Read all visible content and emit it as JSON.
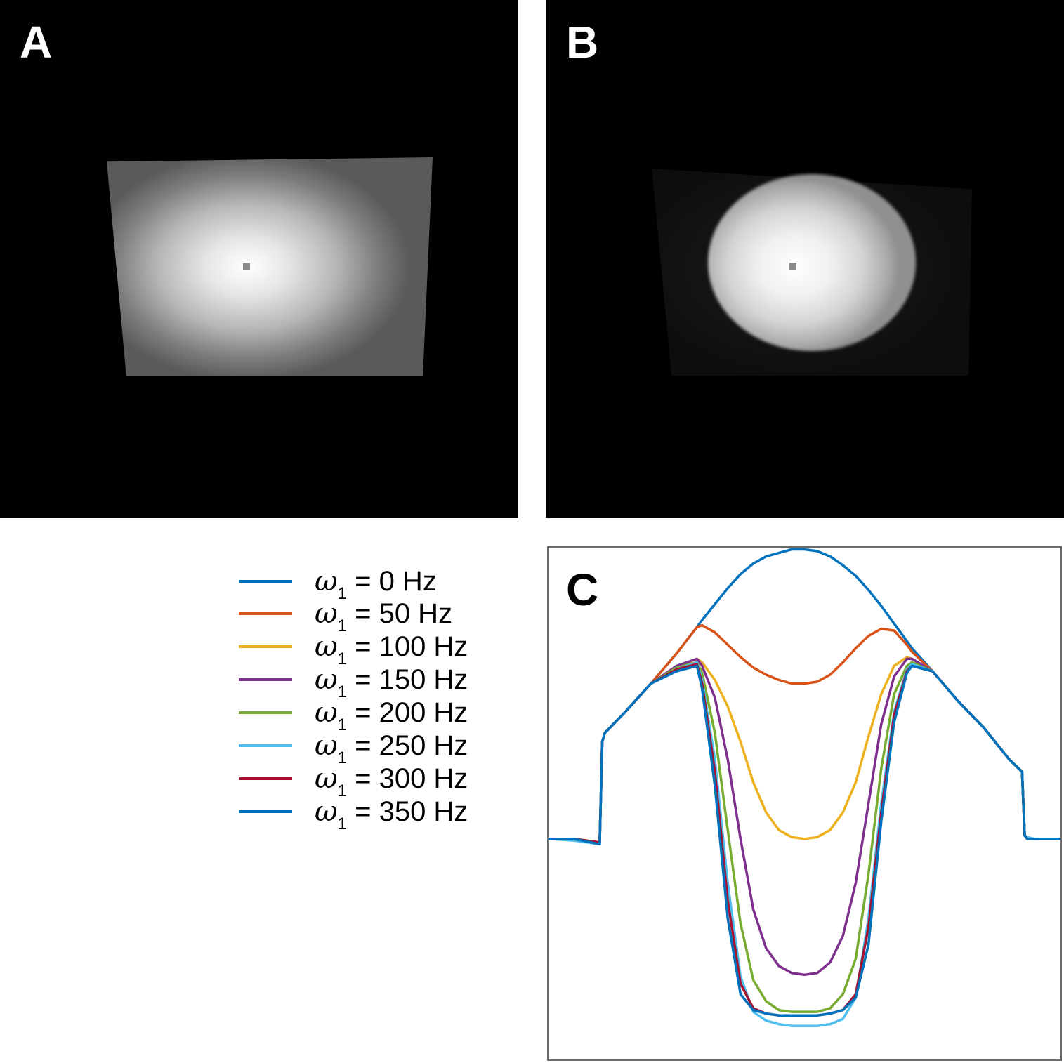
{
  "panels": {
    "a_label": "A",
    "b_label": "B",
    "c_label": "C"
  },
  "colors": {
    "blue": "#0072bd",
    "orange": "#d95319",
    "yellow": "#edb120",
    "purple": "#7e2f8e",
    "green": "#77ac30",
    "light_blue": "#4dbeee",
    "dark_red": "#a2142f"
  },
  "chart_data": {
    "type": "line",
    "title": "",
    "xlabel": "",
    "ylabel": "",
    "grid": false,
    "legend_position": "left of plot",
    "x": [
      0,
      10,
      20,
      21,
      22,
      30,
      40,
      50,
      58,
      60,
      65,
      70,
      75,
      80,
      85,
      90,
      95,
      100,
      105,
      110,
      115,
      120,
      125,
      130,
      135,
      140,
      142,
      150,
      160,
      170,
      180,
      185,
      186,
      187,
      190,
      200
    ],
    "ylim": [
      -1.25,
      1.65
    ],
    "series": [
      {
        "name": "ω1 = 0 Hz",
        "color": "#0072bd",
        "values": [
          0,
          0,
          -0.02,
          0.55,
          0.6,
          0.72,
          0.88,
          1.05,
          1.2,
          1.24,
          1.33,
          1.42,
          1.5,
          1.56,
          1.6,
          1.62,
          1.64,
          1.64,
          1.63,
          1.6,
          1.55,
          1.49,
          1.41,
          1.32,
          1.22,
          1.12,
          1.08,
          0.95,
          0.78,
          0.63,
          0.45,
          0.38,
          0.02,
          0,
          0,
          0
        ]
      },
      {
        "name": "ω1 = 50 Hz",
        "color": "#d95319",
        "values": [
          0,
          0,
          -0.02,
          0.55,
          0.6,
          0.72,
          0.88,
          1.05,
          1.2,
          1.21,
          1.17,
          1.1,
          1.03,
          0.97,
          0.93,
          0.9,
          0.88,
          0.88,
          0.89,
          0.93,
          1.0,
          1.08,
          1.15,
          1.19,
          1.18,
          1.1,
          1.06,
          0.95,
          0.78,
          0.63,
          0.45,
          0.38,
          0.02,
          0,
          0,
          0
        ]
      },
      {
        "name": "ω1 = 100 Hz",
        "color": "#edb120",
        "values": [
          0,
          0,
          -0.02,
          0.55,
          0.6,
          0.72,
          0.88,
          0.97,
          1.02,
          1.0,
          0.9,
          0.75,
          0.55,
          0.32,
          0.15,
          0.05,
          0.01,
          0.0,
          0.01,
          0.05,
          0.15,
          0.32,
          0.58,
          0.82,
          0.98,
          1.03,
          1.02,
          0.95,
          0.78,
          0.63,
          0.45,
          0.38,
          0.02,
          0,
          0,
          0
        ]
      },
      {
        "name": "ω1 = 150 Hz",
        "color": "#7e2f8e",
        "values": [
          0,
          0,
          -0.02,
          0.55,
          0.6,
          0.72,
          0.88,
          0.98,
          1.02,
          0.98,
          0.8,
          0.45,
          0.0,
          -0.4,
          -0.62,
          -0.72,
          -0.76,
          -0.77,
          -0.76,
          -0.7,
          -0.55,
          -0.25,
          0.2,
          0.65,
          0.92,
          1.02,
          1.02,
          0.95,
          0.78,
          0.63,
          0.45,
          0.38,
          0.02,
          0,
          0,
          0
        ]
      },
      {
        "name": "ω1 = 200 Hz",
        "color": "#77ac30",
        "values": [
          0,
          0,
          -0.02,
          0.55,
          0.6,
          0.72,
          0.88,
          0.97,
          1.0,
          0.94,
          0.6,
          0.05,
          -0.48,
          -0.8,
          -0.92,
          -0.97,
          -0.98,
          -0.98,
          -0.98,
          -0.96,
          -0.88,
          -0.68,
          -0.2,
          0.4,
          0.82,
          0.98,
          1.0,
          0.95,
          0.78,
          0.63,
          0.45,
          0.38,
          0.02,
          0,
          0,
          0
        ]
      },
      {
        "name": "ω1 = 250 Hz",
        "color": "#4dbeee",
        "values": [
          0,
          -0.01,
          -0.03,
          0.55,
          0.6,
          0.72,
          0.88,
          0.96,
          1.0,
          0.9,
          0.45,
          -0.25,
          -0.78,
          -0.98,
          -1.03,
          -1.05,
          -1.06,
          -1.06,
          -1.06,
          -1.05,
          -1.02,
          -0.9,
          -0.45,
          0.2,
          0.72,
          0.96,
          0.99,
          0.95,
          0.78,
          0.63,
          0.45,
          0.38,
          0.02,
          0.01,
          0,
          0
        ]
      },
      {
        "name": "ω1 = 300 Hz",
        "color": "#a2142f",
        "values": [
          0,
          0,
          -0.02,
          0.55,
          0.6,
          0.72,
          0.88,
          0.96,
          0.99,
          0.88,
          0.38,
          -0.35,
          -0.82,
          -0.96,
          -0.99,
          -1.0,
          -1.0,
          -1.0,
          -1.0,
          -0.99,
          -0.97,
          -0.88,
          -0.5,
          0.15,
          0.7,
          0.95,
          0.98,
          0.95,
          0.78,
          0.63,
          0.45,
          0.38,
          0.02,
          0,
          0,
          0
        ]
      },
      {
        "name": "ω1 = 350 Hz",
        "color": "#0072bd",
        "values": [
          0,
          0,
          -0.03,
          0.55,
          0.6,
          0.72,
          0.88,
          0.95,
          0.98,
          0.85,
          0.3,
          -0.45,
          -0.88,
          -0.97,
          -0.99,
          -1.0,
          -1.0,
          -1.0,
          -1.0,
          -0.99,
          -0.97,
          -0.9,
          -0.6,
          0.1,
          0.66,
          0.94,
          0.98,
          0.95,
          0.78,
          0.63,
          0.45,
          0.38,
          0.02,
          0,
          0,
          0
        ]
      }
    ]
  },
  "legend": {
    "omega": "ω",
    "sub": "1",
    "entries": [
      " = 0 Hz",
      " = 50 Hz",
      " = 100 Hz",
      " = 150 Hz",
      " = 200 Hz",
      " = 250 Hz",
      " = 300 Hz",
      " = 350 Hz"
    ]
  }
}
